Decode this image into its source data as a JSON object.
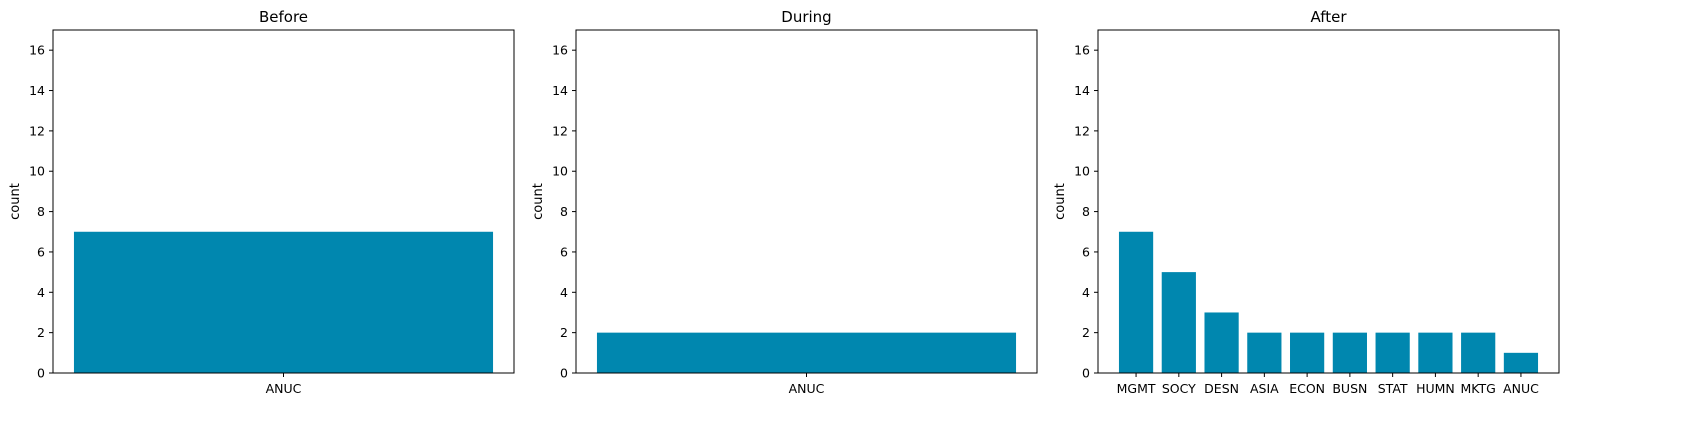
{
  "chart_data": [
    {
      "type": "bar",
      "title": "Before",
      "xlabel": "",
      "ylabel": "count",
      "ylim": [
        0,
        17
      ],
      "yticks": [
        0,
        2,
        4,
        6,
        8,
        10,
        12,
        14,
        16
      ],
      "categories": [
        "ANUC"
      ],
      "values": [
        7
      ],
      "color": "#0087AF",
      "grid": false
    },
    {
      "type": "bar",
      "title": "During",
      "xlabel": "",
      "ylabel": "count",
      "ylim": [
        0,
        17
      ],
      "yticks": [
        0,
        2,
        4,
        6,
        8,
        10,
        12,
        14,
        16
      ],
      "categories": [
        "ANUC"
      ],
      "values": [
        2
      ],
      "color": "#0087AF",
      "grid": false
    },
    {
      "type": "bar",
      "title": "After",
      "xlabel": "",
      "ylabel": "count",
      "ylim": [
        0,
        17
      ],
      "yticks": [
        0,
        2,
        4,
        6,
        8,
        10,
        12,
        14,
        16
      ],
      "categories": [
        "MGMT",
        "SOCY",
        "DESN",
        "ASIA",
        "ECON",
        "BUSN",
        "STAT",
        "HUMN",
        "MKTG",
        "ANUC"
      ],
      "values": [
        7,
        5,
        3,
        2,
        2,
        2,
        2,
        2,
        2,
        1
      ],
      "color": "#0087AF",
      "grid": false
    }
  ]
}
